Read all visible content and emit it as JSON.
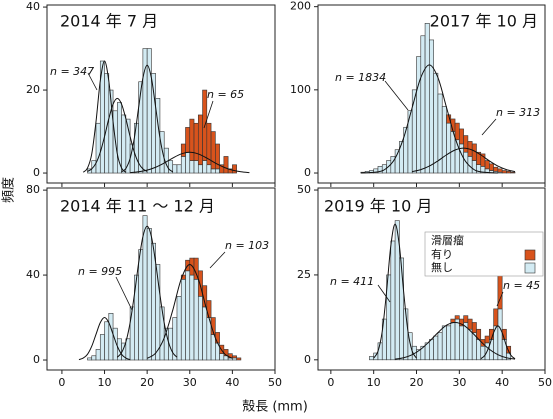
{
  "ylabel": "頻度",
  "xlabel": "殻長 (mm)",
  "legend_title": "滑層瘤",
  "chart_data": [
    {
      "type": "histogram",
      "title": "2014 年 7 月",
      "annotations": [
        "n = 347",
        "n = 65"
      ],
      "bins": [
        4,
        5,
        6,
        7,
        8,
        9,
        10,
        11,
        12,
        13,
        14,
        15,
        16,
        17,
        18,
        19,
        20,
        21,
        22,
        23,
        24,
        25,
        26,
        27,
        28,
        29,
        30,
        31,
        32,
        33,
        34,
        35,
        36,
        37,
        38,
        39,
        40,
        41,
        42,
        43,
        44,
        45,
        46
      ],
      "series": [
        {
          "name": "無し",
          "color": "#d3ebf3",
          "values": [
            0,
            0,
            1,
            3,
            12,
            27,
            24,
            20,
            15,
            17,
            14,
            13,
            7,
            12,
            22,
            30,
            30,
            24,
            18,
            10,
            6,
            3,
            2,
            2,
            4,
            5,
            3,
            3,
            2,
            3,
            2,
            1,
            1,
            0,
            0,
            0,
            0,
            0,
            0,
            0,
            0,
            0
          ]
        },
        {
          "name": "有り",
          "color": "#d8531c",
          "values": [
            0,
            0,
            0,
            0,
            0,
            0,
            0,
            0,
            0,
            0,
            0,
            0,
            0,
            0,
            0,
            0,
            0,
            0,
            0,
            0,
            0,
            0,
            0,
            0,
            3,
            6,
            10,
            9,
            12,
            17,
            10,
            9,
            6,
            2,
            4,
            1,
            2,
            0,
            0,
            0,
            0,
            0
          ]
        }
      ],
      "curves": [
        {
          "x": [
            5,
            6,
            7,
            8,
            9,
            10,
            11,
            12,
            13,
            14,
            15
          ],
          "values": [
            0.2,
            1.2,
            4.6,
            12.4,
            22.2,
            27,
            22.2,
            12.4,
            4.6,
            1.2,
            0.2
          ]
        },
        {
          "x": [
            6,
            7,
            8,
            9,
            10,
            11,
            12,
            13,
            14,
            15,
            16,
            17,
            18,
            19,
            20
          ],
          "values": [
            0.4,
            1,
            2.4,
            5,
            8.8,
            13.1,
            16.6,
            18,
            16.6,
            13.1,
            8.8,
            5,
            2.4,
            1,
            0.4
          ]
        },
        {
          "x": [
            14,
            15,
            16,
            17,
            18,
            19,
            20,
            21,
            22,
            23,
            24,
            25,
            26
          ],
          "values": [
            0.3,
            1.1,
            3.5,
            8.5,
            15.8,
            22.9,
            26,
            22.9,
            15.8,
            8.5,
            3.5,
            1.1,
            0.3
          ]
        },
        {
          "x": [
            16,
            18,
            20,
            22,
            24,
            26,
            28,
            30,
            32,
            34,
            36,
            38,
            40,
            42,
            44
          ],
          "values": [
            0.1,
            0.3,
            0.7,
            1.4,
            2.4,
            3.6,
            4.6,
            5,
            4.6,
            3.6,
            2.4,
            1.4,
            0.7,
            0.3,
            0.1
          ]
        }
      ],
      "xlim": [
        -3.5,
        50
      ],
      "xticks": [
        0,
        10,
        20,
        30,
        40,
        50
      ],
      "ylim": [
        -2.4,
        40.5
      ],
      "yticks": [
        0,
        20,
        40
      ]
    },
    {
      "type": "histogram",
      "title": "2017 年 10 月",
      "annotations": [
        "n = 1834",
        "n = 313"
      ],
      "bins": [
        4,
        5,
        6,
        7,
        8,
        9,
        10,
        11,
        12,
        13,
        14,
        15,
        16,
        17,
        18,
        19,
        20,
        21,
        22,
        23,
        24,
        25,
        26,
        27,
        28,
        29,
        30,
        31,
        32,
        33,
        34,
        35,
        36,
        37,
        38,
        39,
        40,
        41,
        42,
        43,
        44,
        45,
        46
      ],
      "series": [
        {
          "name": "無し",
          "color": "#d3ebf3",
          "values": [
            0,
            0,
            0,
            1,
            2,
            3,
            5,
            8,
            10,
            15,
            20,
            28,
            38,
            55,
            75,
            100,
            140,
            165,
            180,
            160,
            120,
            95,
            80,
            60,
            50,
            40,
            35,
            25,
            20,
            15,
            10,
            8,
            5,
            3,
            2,
            1,
            0,
            0,
            0,
            0,
            0,
            0
          ]
        },
        {
          "name": "有り",
          "color": "#d8531c",
          "values": [
            0,
            0,
            0,
            0,
            0,
            0,
            0,
            0,
            0,
            0,
            0,
            0,
            0,
            0,
            0,
            0,
            0,
            0,
            0,
            0,
            0,
            0,
            0,
            10,
            15,
            20,
            18,
            20,
            18,
            20,
            15,
            15,
            10,
            8,
            5,
            4,
            3,
            2,
            1,
            0,
            0,
            0
          ]
        }
      ],
      "curves": [
        {
          "x": [
            7,
            11,
            13,
            15,
            17,
            19,
            21,
            23,
            25,
            27,
            29,
            31,
            33,
            35,
            39
          ],
          "values": [
            0,
            1.4,
            5.7,
            17.6,
            42.3,
            78.9,
            114.7,
            130,
            114.7,
            78.9,
            42.3,
            17.6,
            5.7,
            1.4,
            0
          ]
        },
        {
          "x": [
            19,
            21,
            23,
            25,
            27,
            29,
            31,
            33,
            35,
            37,
            39,
            41,
            43
          ],
          "values": [
            1.7,
            4.1,
            8.3,
            14.6,
            21.8,
            27.7,
            30,
            27.7,
            21.8,
            14.6,
            8.3,
            4.1,
            1.7
          ]
        }
      ],
      "xlim": [
        -3,
        50
      ],
      "xticks": [
        0,
        10,
        20,
        30,
        40,
        50
      ],
      "ylim": [
        -12,
        202
      ],
      "yticks": [
        0,
        100,
        200
      ]
    },
    {
      "type": "histogram",
      "title": "2014 年 11 ～ 12 月",
      "annotations": [
        "n = 995",
        "n = 103"
      ],
      "bins": [
        4,
        5,
        6,
        7,
        8,
        9,
        10,
        11,
        12,
        13,
        14,
        15,
        16,
        17,
        18,
        19,
        20,
        21,
        22,
        23,
        24,
        25,
        26,
        27,
        28,
        29,
        30,
        31,
        32,
        33,
        34,
        35,
        36,
        37,
        38,
        39,
        40,
        41,
        42,
        43,
        44,
        45,
        46
      ],
      "series": [
        {
          "name": "無し",
          "color": "#d3ebf3",
          "values": [
            0,
            0,
            1,
            2,
            5,
            12,
            18,
            22,
            15,
            10,
            8,
            10,
            25,
            40,
            52,
            68,
            62,
            55,
            45,
            25,
            15,
            15,
            20,
            30,
            38,
            42,
            40,
            38,
            30,
            25,
            20,
            12,
            8,
            3,
            2,
            1,
            1,
            0,
            0,
            0,
            0,
            0
          ]
        },
        {
          "name": "有り",
          "color": "#d8531c",
          "values": [
            0,
            0,
            0,
            0,
            0,
            0,
            0,
            0,
            0,
            0,
            0,
            0,
            0,
            0,
            0,
            0,
            0,
            0,
            0,
            0,
            0,
            0,
            0,
            0,
            2,
            5,
            8,
            10,
            12,
            10,
            8,
            8,
            5,
            4,
            3,
            2,
            1,
            1,
            0,
            0,
            0,
            0
          ]
        }
      ],
      "curves": [
        {
          "x": [
            4,
            5,
            6,
            7,
            8,
            9,
            10,
            11,
            12,
            13,
            14,
            15,
            16
          ],
          "values": [
            0.2,
            0.9,
            2.7,
            6.5,
            12.1,
            17.6,
            20,
            17.6,
            12.1,
            6.5,
            2.7,
            0.9,
            0.2
          ]
        },
        {
          "x": [
            13,
            14,
            15,
            16,
            17,
            18,
            19,
            20,
            21,
            22,
            23,
            24,
            25,
            26,
            27
          ],
          "values": [
            1.3,
            3.5,
            8.5,
            17.5,
            30.7,
            45.7,
            58.1,
            63,
            58.1,
            45.7,
            30.7,
            17.5,
            8.5,
            3.5,
            1.3
          ]
        },
        {
          "x": [
            20,
            22,
            24,
            26,
            28,
            30,
            32,
            34,
            36,
            38,
            40
          ],
          "values": [
            0.8,
            3.3,
            10.4,
            23.4,
            38.2,
            45,
            38.2,
            23.4,
            10.4,
            3.3,
            0.8
          ]
        }
      ],
      "xlim": [
        -3.5,
        50
      ],
      "xticks": [
        0,
        10,
        20,
        30,
        40,
        50
      ],
      "ylim": [
        -4.7,
        81
      ],
      "yticks": [
        0,
        40,
        80
      ]
    },
    {
      "type": "histogram",
      "title": "2019 年 10 月",
      "annotations": [
        "n = 411",
        "n = 45"
      ],
      "bins": [
        4,
        5,
        6,
        7,
        8,
        9,
        10,
        11,
        12,
        13,
        14,
        15,
        16,
        17,
        18,
        19,
        20,
        21,
        22,
        23,
        24,
        25,
        26,
        27,
        28,
        29,
        30,
        31,
        32,
        33,
        34,
        35,
        36,
        37,
        38,
        39,
        40,
        41,
        42,
        43,
        44,
        45,
        46
      ],
      "series": [
        {
          "name": "無し",
          "color": "#d3ebf3",
          "values": [
            0,
            0,
            0,
            0,
            0,
            1,
            2,
            5,
            12,
            25,
            35,
            41,
            30,
            15,
            8,
            4,
            3,
            4,
            5,
            6,
            7,
            8,
            10,
            10,
            11,
            12,
            10,
            11,
            9,
            8,
            6,
            4,
            5,
            6,
            10,
            15,
            6,
            2,
            0,
            0,
            0,
            0
          ]
        },
        {
          "name": "有り",
          "color": "#d8531c",
          "values": [
            0,
            0,
            0,
            0,
            0,
            0,
            0,
            0,
            0,
            0,
            0,
            0,
            0,
            0,
            0,
            0,
            0,
            0,
            0,
            0,
            0,
            0,
            0,
            0,
            1,
            1,
            2,
            2,
            3,
            3,
            3,
            2,
            2,
            3,
            5,
            10,
            3,
            2,
            0,
            0,
            0,
            0
          ]
        }
      ],
      "curves": [
        {
          "x": [
            10,
            11,
            12,
            13,
            14,
            15,
            16,
            17,
            18,
            19,
            20
          ],
          "values": [
            0.5,
            2.5,
            8.4,
            20,
            33.6,
            40,
            33.6,
            20,
            8.4,
            2.5,
            0.5
          ]
        },
        {
          "x": [
            15,
            17,
            19,
            21,
            23,
            25,
            27,
            29,
            31,
            33,
            35,
            37,
            39,
            41,
            43
          ],
          "values": [
            0.2,
            0.6,
            1.5,
            3.1,
            5.4,
            8,
            10.2,
            11,
            10.2,
            8,
            5.4,
            3.1,
            1.5,
            0.6,
            0.2
          ]
        },
        {
          "x": [
            35,
            36,
            37,
            38,
            39,
            40,
            41,
            42,
            43
          ],
          "values": [
            0.3,
            1.4,
            4.1,
            8,
            10,
            8,
            4.1,
            1.4,
            0.3
          ]
        }
      ],
      "xlim": [
        -3,
        50
      ],
      "xticks": [
        0,
        10,
        20,
        30,
        40,
        50
      ],
      "ylim": [
        -3,
        50.6
      ],
      "yticks": [
        0,
        25,
        50
      ]
    }
  ]
}
